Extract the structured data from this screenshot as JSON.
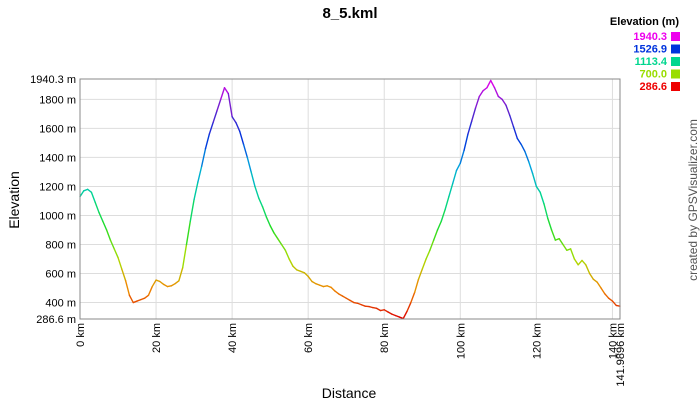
{
  "chart_data": {
    "type": "line",
    "title": "8_5.kml",
    "xlabel": "Distance",
    "ylabel": "Elevation",
    "x_unit": "km",
    "y_unit": "m",
    "xlim": [
      0,
      141.9896
    ],
    "ylim": [
      286.6,
      1940.3
    ],
    "grid": true,
    "x_ticks": [
      {
        "value": 0,
        "label": "0 km"
      },
      {
        "value": 20,
        "label": "20 km"
      },
      {
        "value": 40,
        "label": "40 km"
      },
      {
        "value": 60,
        "label": "60 km"
      },
      {
        "value": 80,
        "label": "80 km"
      },
      {
        "value": 100,
        "label": "100 km"
      },
      {
        "value": 120,
        "label": "120 km"
      },
      {
        "value": 140,
        "label": "140 km"
      },
      {
        "value": 141.9896,
        "label": "141.9896 km"
      }
    ],
    "y_ticks": [
      {
        "value": 286.6,
        "label": "286.6 m"
      },
      {
        "value": 400,
        "label": "400 m"
      },
      {
        "value": 600,
        "label": "600 m"
      },
      {
        "value": 800,
        "label": "800 m"
      },
      {
        "value": 1000,
        "label": "1000 m"
      },
      {
        "value": 1200,
        "label": "1200 m"
      },
      {
        "value": 1400,
        "label": "1400 m"
      },
      {
        "value": 1600,
        "label": "1600 m"
      },
      {
        "value": 1800,
        "label": "1800 m"
      },
      {
        "value": 1940.3,
        "label": "1940.3 m"
      }
    ],
    "legend": {
      "title": "Elevation (m)",
      "position": "top-right",
      "entries": [
        {
          "label": "1940.3",
          "color": "#ee00ee"
        },
        {
          "label": "1526.9",
          "color": "#0033dd"
        },
        {
          "label": "1113.4",
          "color": "#00d68f"
        },
        {
          "label": "700.0",
          "color": "#99dd00"
        },
        {
          "label": "286.6",
          "color": "#ee0000"
        }
      ]
    },
    "color_scale": [
      {
        "value": 286.6,
        "color": "#dd0000"
      },
      {
        "value": 493.3,
        "color": "#ee8800"
      },
      {
        "value": 700.0,
        "color": "#aadd00"
      },
      {
        "value": 906.7,
        "color": "#22dd22"
      },
      {
        "value": 1113.4,
        "color": "#00d68f"
      },
      {
        "value": 1320.1,
        "color": "#00aadd"
      },
      {
        "value": 1526.9,
        "color": "#0033dd"
      },
      {
        "value": 1733.6,
        "color": "#6622cc"
      },
      {
        "value": 1940.3,
        "color": "#ee00ee"
      }
    ],
    "points": [
      [
        0,
        1130
      ],
      [
        1,
        1170
      ],
      [
        2,
        1180
      ],
      [
        3,
        1160
      ],
      [
        4,
        1090
      ],
      [
        5,
        1020
      ],
      [
        6,
        960
      ],
      [
        7,
        900
      ],
      [
        8,
        830
      ],
      [
        9,
        770
      ],
      [
        10,
        710
      ],
      [
        11,
        630
      ],
      [
        12,
        550
      ],
      [
        13,
        450
      ],
      [
        14,
        400
      ],
      [
        15,
        410
      ],
      [
        16,
        420
      ],
      [
        17,
        430
      ],
      [
        18,
        450
      ],
      [
        19,
        510
      ],
      [
        20,
        555
      ],
      [
        21,
        545
      ],
      [
        22,
        525
      ],
      [
        23,
        510
      ],
      [
        24,
        515
      ],
      [
        25,
        530
      ],
      [
        26,
        550
      ],
      [
        27,
        640
      ],
      [
        28,
        800
      ],
      [
        29,
        960
      ],
      [
        30,
        1110
      ],
      [
        31,
        1230
      ],
      [
        32,
        1340
      ],
      [
        33,
        1460
      ],
      [
        34,
        1560
      ],
      [
        35,
        1640
      ],
      [
        36,
        1720
      ],
      [
        37,
        1800
      ],
      [
        38,
        1880
      ],
      [
        39,
        1840
      ],
      [
        40,
        1680
      ],
      [
        41,
        1640
      ],
      [
        42,
        1580
      ],
      [
        43,
        1490
      ],
      [
        44,
        1400
      ],
      [
        45,
        1300
      ],
      [
        46,
        1200
      ],
      [
        47,
        1120
      ],
      [
        48,
        1060
      ],
      [
        49,
        990
      ],
      [
        50,
        930
      ],
      [
        51,
        880
      ],
      [
        52,
        840
      ],
      [
        53,
        800
      ],
      [
        54,
        760
      ],
      [
        55,
        700
      ],
      [
        56,
        650
      ],
      [
        57,
        625
      ],
      [
        58,
        615
      ],
      [
        59,
        605
      ],
      [
        60,
        580
      ],
      [
        61,
        545
      ],
      [
        62,
        530
      ],
      [
        63,
        520
      ],
      [
        64,
        510
      ],
      [
        65,
        515
      ],
      [
        66,
        505
      ],
      [
        67,
        480
      ],
      [
        68,
        460
      ],
      [
        69,
        445
      ],
      [
        70,
        430
      ],
      [
        71,
        415
      ],
      [
        72,
        400
      ],
      [
        73,
        395
      ],
      [
        74,
        385
      ],
      [
        75,
        375
      ],
      [
        76,
        372
      ],
      [
        77,
        365
      ],
      [
        78,
        360
      ],
      [
        79,
        345
      ],
      [
        80,
        350
      ],
      [
        81,
        335
      ],
      [
        82,
        320
      ],
      [
        83,
        310
      ],
      [
        84,
        300
      ],
      [
        85,
        290
      ],
      [
        86,
        340
      ],
      [
        87,
        400
      ],
      [
        88,
        470
      ],
      [
        89,
        560
      ],
      [
        90,
        630
      ],
      [
        91,
        700
      ],
      [
        92,
        760
      ],
      [
        93,
        830
      ],
      [
        94,
        900
      ],
      [
        95,
        960
      ],
      [
        96,
        1040
      ],
      [
        97,
        1130
      ],
      [
        98,
        1220
      ],
      [
        99,
        1310
      ],
      [
        100,
        1360
      ],
      [
        101,
        1450
      ],
      [
        102,
        1560
      ],
      [
        103,
        1650
      ],
      [
        104,
        1740
      ],
      [
        105,
        1820
      ],
      [
        106,
        1860
      ],
      [
        107,
        1880
      ],
      [
        108,
        1930
      ],
      [
        109,
        1880
      ],
      [
        110,
        1820
      ],
      [
        111,
        1800
      ],
      [
        112,
        1760
      ],
      [
        113,
        1690
      ],
      [
        114,
        1610
      ],
      [
        115,
        1530
      ],
      [
        116,
        1490
      ],
      [
        117,
        1440
      ],
      [
        118,
        1370
      ],
      [
        119,
        1290
      ],
      [
        120,
        1200
      ],
      [
        121,
        1160
      ],
      [
        122,
        1080
      ],
      [
        123,
        980
      ],
      [
        124,
        900
      ],
      [
        125,
        830
      ],
      [
        126,
        840
      ],
      [
        127,
        800
      ],
      [
        128,
        760
      ],
      [
        129,
        770
      ],
      [
        130,
        700
      ],
      [
        131,
        660
      ],
      [
        132,
        690
      ],
      [
        133,
        660
      ],
      [
        134,
        600
      ],
      [
        135,
        560
      ],
      [
        136,
        540
      ],
      [
        137,
        500
      ],
      [
        138,
        460
      ],
      [
        139,
        430
      ],
      [
        140,
        410
      ],
      [
        141,
        380
      ],
      [
        141.9896,
        375
      ]
    ],
    "credit": "created by GPSVisualizer.com"
  }
}
